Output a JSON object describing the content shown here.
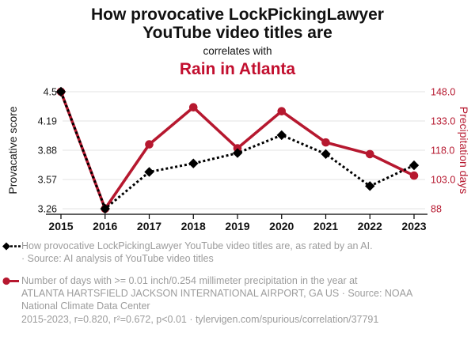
{
  "header": {
    "title": "How provocative LockPickingLawyer\nYouTube video titles are",
    "connector": "correlates with",
    "subtitle": "Rain in Atlanta"
  },
  "colors": {
    "accent_red": "#b6182f",
    "title_red": "#c20e2e",
    "grid": "#e3e3e3",
    "legend_gray": "#9c9c9c"
  },
  "chart_data": {
    "type": "line",
    "x": [
      2015,
      2016,
      2017,
      2018,
      2019,
      2020,
      2021,
      2022,
      2023
    ],
    "series": [
      {
        "name": "How provocative LockPickingLawyer YouTube video titles are",
        "axis": "left",
        "color": "#000000",
        "marker": "diamond",
        "style": "dotted",
        "values": [
          4.5,
          3.26,
          3.65,
          3.74,
          3.85,
          4.04,
          3.84,
          3.5,
          3.72
        ]
      },
      {
        "name": "Rain in Atlanta (precipitation days)",
        "axis": "right",
        "color": "#b6182f",
        "marker": "circle",
        "style": "solid",
        "values": [
          148,
          88,
          121,
          140,
          119,
          138,
          122,
          116,
          105
        ]
      }
    ],
    "left_axis": {
      "label": "Provacative score",
      "min": 3.26,
      "max": 4.5,
      "ticks": [
        "4.5",
        "4.19",
        "3.88",
        "3.57",
        "3.26"
      ]
    },
    "right_axis": {
      "label": "Precipitation days",
      "min": 88,
      "max": 148,
      "ticks": [
        "148.0",
        "133.0",
        "118.0",
        "103.0",
        "88"
      ]
    },
    "grid": true,
    "legend_position": "bottom"
  },
  "legend": {
    "series1": "How provocative LockPickingLawyer YouTube video titles are, as rated by an AI.\n· Source: AI analysis of YouTube video titles",
    "series2": "Number of days with >= 0.01 inch/0.254 millimeter precipitation in the year at\nATLANTA HARTSFIELD JACKSON INTERNATIONAL AIRPORT, GA US · Source: NOAA\nNational Climate Data Center"
  },
  "footer": {
    "stats": "2015-2023, r=0.820, r²=0.672, p<0.01 · tylervigen.com/spurious/correlation/37791"
  }
}
